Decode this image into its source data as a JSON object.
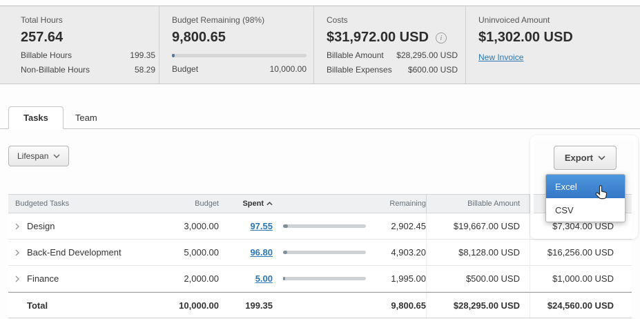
{
  "colors": {
    "link": "#2a76b5",
    "menu_highlight": "#3b82cd",
    "panel_bg": "#ececec"
  },
  "summary": {
    "cards": [
      {
        "title": "Total Hours",
        "value": "257.64",
        "rows": [
          {
            "label": "Billable Hours",
            "value": "199.35"
          },
          {
            "label": "Non-Billable Hours",
            "value": "58.29"
          }
        ]
      },
      {
        "title": "Budget Remaining (98%)",
        "value": "9,800.65",
        "bar_pct": 2,
        "footer_label": "Budget",
        "footer_value": "10,000.00"
      },
      {
        "title": "Costs",
        "value": "$31,972.00 USD",
        "info_icon": "i",
        "rows": [
          {
            "label": "Billable Amount",
            "value": "$28,295.00 USD"
          },
          {
            "label": "Billable Expenses",
            "value": "$600.00 USD"
          }
        ]
      },
      {
        "title": "Uninvoiced Amount",
        "value": "$1,302.00 USD",
        "link": "New Invoice"
      }
    ]
  },
  "tabs": [
    {
      "label": "Tasks",
      "active": true
    },
    {
      "label": "Team",
      "active": false
    }
  ],
  "toolbar": {
    "lifespan_label": "Lifespan",
    "export_label": "Export"
  },
  "export_menu": {
    "items": [
      {
        "label": "Excel",
        "highlighted": true
      },
      {
        "label": "CSV",
        "highlighted": false
      }
    ]
  },
  "table": {
    "headers": {
      "task": "Budgeted Tasks",
      "budget": "Budget",
      "spent": "Spent",
      "remaining": "Remaining",
      "billable": "Billable Amount",
      "last": ""
    },
    "rows": [
      {
        "task": "Design",
        "budget": "3,000.00",
        "spent": "97.55",
        "bar_pct": 6,
        "remaining": "2,902.45",
        "billable": "$19,667.00 USD",
        "last_amount": "$7,304.00 USD"
      },
      {
        "task": "Back-End Development",
        "budget": "5,000.00",
        "spent": "96.80",
        "bar_pct": 5,
        "remaining": "4,903.20",
        "billable": "$8,128.00 USD",
        "last_amount": "$16,256.00 USD"
      },
      {
        "task": "Finance",
        "budget": "2,000.00",
        "spent": "5.00",
        "bar_pct": 1.5,
        "remaining": "1,995.00",
        "billable": "$500.00 USD",
        "last_amount": "$1,000.00 USD"
      }
    ],
    "total": {
      "task": "Total",
      "budget": "10,000.00",
      "spent": "199.35",
      "remaining": "9,800.65",
      "billable": "$28,295.00 USD",
      "last_amount": "$24,560.00 USD"
    }
  }
}
